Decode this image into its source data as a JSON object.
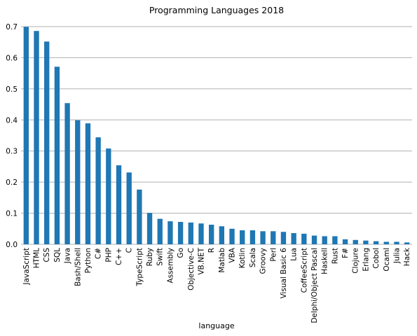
{
  "chart_data": {
    "type": "bar",
    "title": "Programming Languages 2018",
    "xlabel": "language",
    "ylabel": "",
    "ylim": [
      0,
      0.7
    ],
    "yticks": [
      0.0,
      0.1,
      0.2,
      0.3,
      0.4,
      0.5,
      0.6,
      0.7
    ],
    "ytick_labels": [
      "0.0",
      "0.1",
      "0.2",
      "0.3",
      "0.4",
      "0.5",
      "0.6",
      "0.7"
    ],
    "grid": "horizontal",
    "bar_color": "#1f77b4",
    "grid_color": "#b0b0b0",
    "categories": [
      "JavaScript",
      "HTML",
      "CSS",
      "SQL",
      "Java",
      "Bash/Shell",
      "Python",
      "C#",
      "PHP",
      "C++",
      "C",
      "TypeScript",
      "Ruby",
      "Swift",
      "Assembly",
      "Go",
      "Objective-C",
      "VB.NET",
      "R",
      "Matlab",
      "VBA",
      "Kotlin",
      "Scala",
      "Groovy",
      "Perl",
      "Visual Basic 6",
      "Lua",
      "CoffeeScript",
      "Delphi/Object Pascal",
      "Haskell",
      "Rust",
      "F#",
      "Clojure",
      "Erlang",
      "Cobol",
      "Ocaml",
      "Julia",
      "Hack"
    ],
    "values": [
      0.699,
      0.686,
      0.652,
      0.571,
      0.454,
      0.399,
      0.389,
      0.344,
      0.308,
      0.254,
      0.231,
      0.176,
      0.101,
      0.082,
      0.074,
      0.072,
      0.07,
      0.067,
      0.063,
      0.058,
      0.05,
      0.045,
      0.045,
      0.042,
      0.042,
      0.04,
      0.036,
      0.034,
      0.028,
      0.026,
      0.026,
      0.016,
      0.014,
      0.012,
      0.01,
      0.008,
      0.008,
      0.006
    ]
  }
}
